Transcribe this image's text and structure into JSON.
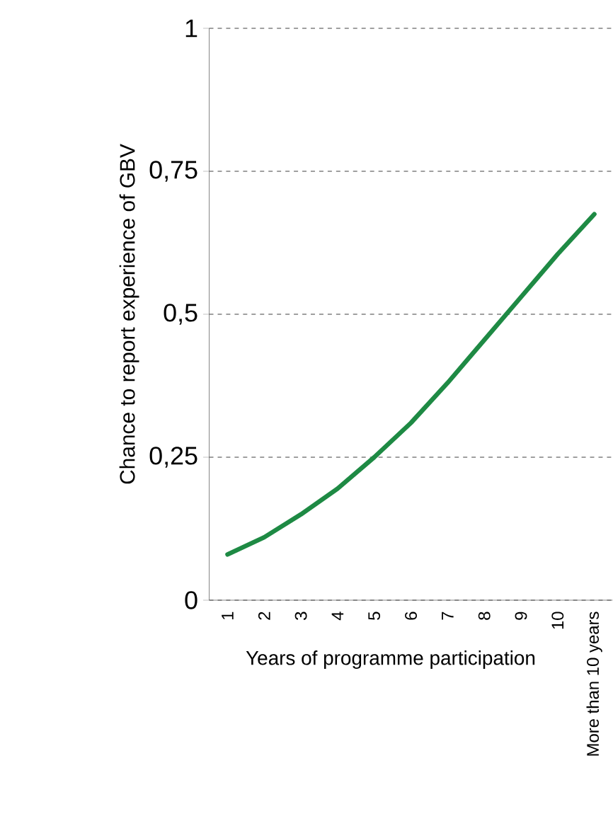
{
  "chart_data": {
    "type": "line",
    "categories": [
      "1",
      "2",
      "3",
      "4",
      "5",
      "6",
      "7",
      "8",
      "9",
      "10",
      "More than 10 years"
    ],
    "values": [
      0.08,
      0.11,
      0.15,
      0.195,
      0.25,
      0.31,
      0.38,
      0.455,
      0.53,
      0.605,
      0.675
    ],
    "color": "#1e8a44",
    "xlabel": "Years of programme participation",
    "ylabel": "Chance to report experience of GBV",
    "ylim": [
      0,
      1
    ],
    "yticks": [
      0,
      {
        "value": 0.25,
        "label": "0,25"
      },
      {
        "value": 0.5,
        "label": "0,5"
      },
      {
        "value": 0.75,
        "label": "0,75"
      },
      1
    ],
    "grid": "y",
    "marker": "none",
    "line_style": "solid"
  }
}
